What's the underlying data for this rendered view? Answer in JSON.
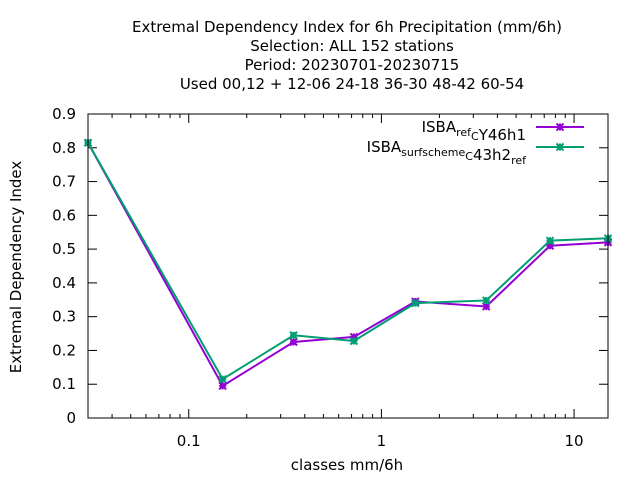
{
  "chart_data": {
    "type": "line",
    "title_lines": [
      "Extremal Dependency Index  for 6h Precipitation (mm/6h)",
      "Selection: ALL    152 stations",
      "Period: 20230701-20230715",
      "Used  00,12  + 12-06 24-18 36-30 48-42 60-54"
    ],
    "xlabel": "classes mm/6h",
    "ylabel": "Extremal Dependency Index",
    "x_scale": "log",
    "xlim": [
      0.03,
      15
    ],
    "ylim": [
      0,
      0.9
    ],
    "x_ticks": [
      {
        "value": 0.1,
        "label": "0.1"
      },
      {
        "value": 1,
        "label": "1"
      },
      {
        "value": 10,
        "label": "10"
      }
    ],
    "y_ticks": [
      {
        "value": 0,
        "label": "0"
      },
      {
        "value": 0.1,
        "label": "0.1"
      },
      {
        "value": 0.2,
        "label": "0.2"
      },
      {
        "value": 0.3,
        "label": "0.3"
      },
      {
        "value": 0.4,
        "label": "0.4"
      },
      {
        "value": 0.5,
        "label": "0.5"
      },
      {
        "value": 0.6,
        "label": "0.6"
      },
      {
        "value": 0.7,
        "label": "0.7"
      },
      {
        "value": 0.8,
        "label": "0.8"
      },
      {
        "value": 0.9,
        "label": "0.9"
      }
    ],
    "legend_position": "top-right",
    "x": [
      0.03,
      0.15,
      0.35,
      0.72,
      1.5,
      3.5,
      7.5,
      15
    ],
    "series": [
      {
        "name": "ISBA_ref_C Y46h1",
        "legend_parts": [
          [
            "ISBA",
            "n"
          ],
          [
            "ref",
            "sub"
          ],
          [
            "C",
            "sub"
          ],
          [
            "Y46h1",
            "n"
          ]
        ],
        "color": "#9400d3",
        "marker": "cross-plus",
        "values": [
          0.815,
          0.095,
          0.225,
          0.24,
          0.345,
          0.33,
          0.51,
          0.52
        ]
      },
      {
        "name": "ISBA_surfscheme_C43h2_ref",
        "legend_parts": [
          [
            "ISBA",
            "n"
          ],
          [
            "surfscheme",
            "sub"
          ],
          [
            "C",
            "sub"
          ],
          [
            "43h2",
            "n"
          ],
          [
            "ref",
            "sub"
          ]
        ],
        "color": "#009e73",
        "marker": "cross-plus",
        "values": [
          0.815,
          0.115,
          0.245,
          0.228,
          0.34,
          0.348,
          0.525,
          0.532
        ]
      }
    ]
  }
}
